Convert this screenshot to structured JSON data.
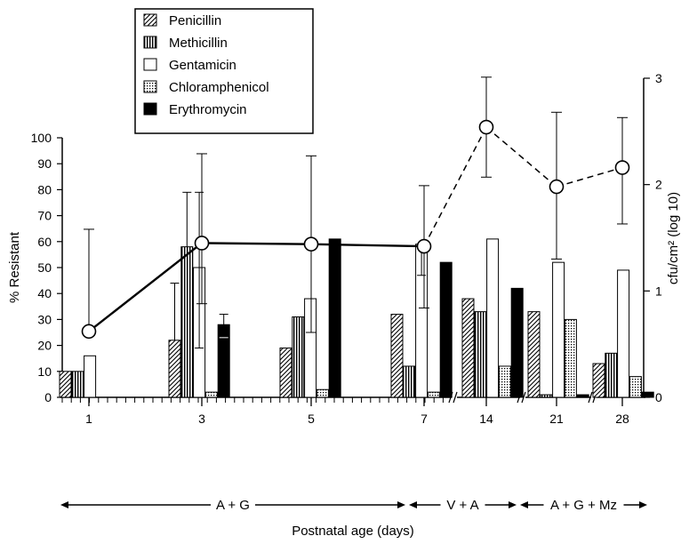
{
  "chart_data": {
    "type": "bar",
    "categories": [
      "1",
      "3",
      "5",
      "7",
      "14",
      "21",
      "28"
    ],
    "xlabel": "Postnatal age (days)",
    "ylabel": "% Resistant",
    "ylim": [
      0,
      100
    ],
    "y_ticks": [
      "0",
      "10",
      "20",
      "30",
      "40",
      "50",
      "60",
      "70",
      "80",
      "90",
      "100"
    ],
    "y2label": "cfu/cm² (log 10)",
    "y2lim": [
      0,
      3
    ],
    "y2_ticks": [
      "0",
      "1",
      "2",
      "3"
    ],
    "legend_position": "top-left",
    "series": [
      {
        "name": "Penicillin",
        "pattern": "diagonal-hatch",
        "values": [
          10,
          22,
          19,
          32,
          38,
          33,
          13
        ]
      },
      {
        "name": "Methicillin",
        "pattern": "vertical-lines",
        "values": [
          10,
          58,
          31,
          12,
          33,
          1,
          17
        ]
      },
      {
        "name": "Gentamicin",
        "pattern": "white",
        "values": [
          16,
          50,
          38,
          59,
          61,
          52,
          49
        ]
      },
      {
        "name": "Chloramphenicol",
        "pattern": "dotted",
        "values": [
          0,
          2,
          3,
          2,
          12,
          30,
          8
        ]
      },
      {
        "name": "Erythromycin",
        "pattern": "solid-black",
        "values": [
          0,
          28,
          61,
          52,
          42,
          1,
          2
        ]
      }
    ],
    "bar_error_bars": [
      {
        "category": "3",
        "series": "Penicillin",
        "high": 44
      },
      {
        "category": "3",
        "series": "Methicillin",
        "high": 79
      },
      {
        "category": "3",
        "series": "Gentamicin",
        "low": 19,
        "high": 79
      },
      {
        "category": "3",
        "series": "Erythromycin",
        "low": 23,
        "high": 32
      },
      {
        "category": "7",
        "series": "Gentamicin",
        "low": 47
      }
    ],
    "count_series": {
      "name": "cfu/cm² (log 10)",
      "x": [
        "1",
        "3",
        "5",
        "7",
        "14",
        "21",
        "28"
      ],
      "values": [
        0.62,
        1.45,
        1.44,
        1.42,
        2.54,
        1.98,
        2.16
      ],
      "error_high": [
        1.58,
        2.29,
        2.27,
        1.99,
        3.01,
        2.68,
        2.63
      ],
      "error_low": [
        null,
        0.88,
        0.61,
        0.84,
        2.07,
        1.3,
        1.63
      ],
      "line_style": [
        "solid",
        "solid",
        "solid",
        "dashed",
        "dashed",
        "dashed"
      ]
    },
    "treatment_periods": [
      {
        "label": "A + G",
        "from": "birth",
        "to": "7"
      },
      {
        "label": "V + A",
        "from": "7",
        "to": "21"
      },
      {
        "label": "A + G + Mz",
        "from": "21",
        "to": "28"
      }
    ]
  }
}
